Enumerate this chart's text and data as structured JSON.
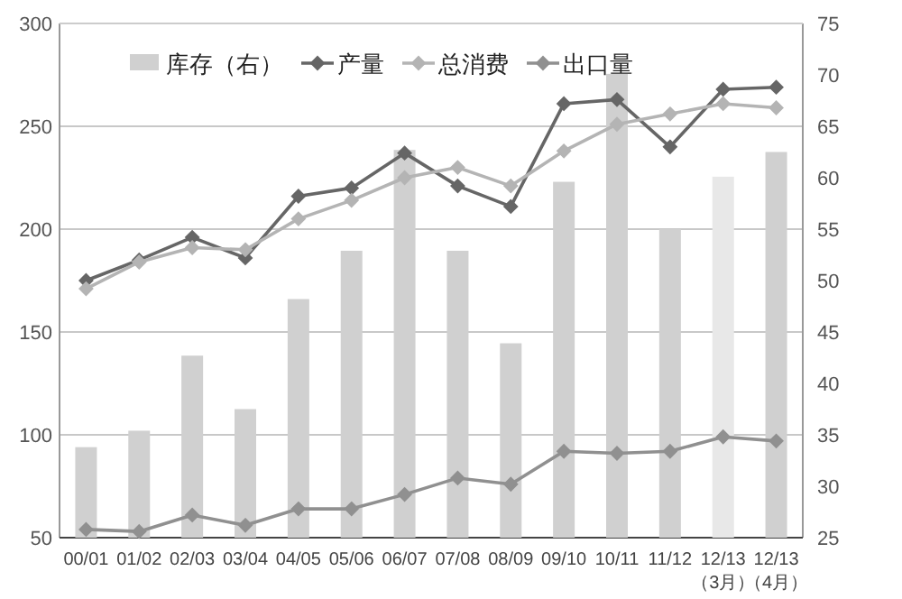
{
  "chart_data": {
    "type": "line",
    "categories": [
      "00/01",
      "01/02",
      "02/03",
      "03/04",
      "04/05",
      "05/06",
      "06/07",
      "07/08",
      "08/09",
      "09/10",
      "10/11",
      "11/12",
      "12/13\n（3月）",
      "12/13\n（4月）"
    ],
    "series": [
      {
        "name": "库存（右）",
        "type": "bar",
        "axis": "y2",
        "color": "#d0d0d0",
        "colors": [
          "#d0d0d0",
          "#d0d0d0",
          "#d0d0d0",
          "#d0d0d0",
          "#d0d0d0",
          "#d0d0d0",
          "#d0d0d0",
          "#d0d0d0",
          "#d0d0d0",
          "#d0d0d0",
          "#d0d0d0",
          "#d0d0d0",
          "#e8e8e8",
          "#d0d0d0"
        ],
        "values": [
          33.8,
          35.4,
          42.7,
          37.5,
          48.2,
          52.9,
          62.7,
          52.9,
          43.9,
          59.6,
          70.1,
          55,
          60.1,
          62.5
        ]
      },
      {
        "name": "产量",
        "color": "#666666",
        "values": [
          175,
          185,
          196,
          186,
          216,
          220,
          237,
          221,
          211,
          261,
          263,
          240,
          268,
          269
        ]
      },
      {
        "name": "总消费",
        "color": "#b4b4b4",
        "values": [
          171,
          184,
          191,
          190,
          205,
          214,
          225,
          230,
          221,
          238,
          251,
          256,
          261,
          259
        ]
      },
      {
        "name": "出口量",
        "color": "#909090",
        "values": [
          54,
          53,
          61,
          56,
          64,
          64,
          71,
          79,
          76,
          92,
          91,
          92,
          99,
          97
        ]
      }
    ],
    "ylim": [
      50,
      300
    ],
    "yticks": [
      50,
      100,
      150,
      200,
      250,
      300
    ],
    "y2lim": [
      25,
      75
    ],
    "y2ticks": [
      25,
      30,
      35,
      40,
      45,
      50,
      55,
      60,
      65,
      70,
      75
    ],
    "grid": "y",
    "legend": "top",
    "marker": "diamond",
    "line_style": "solid"
  }
}
